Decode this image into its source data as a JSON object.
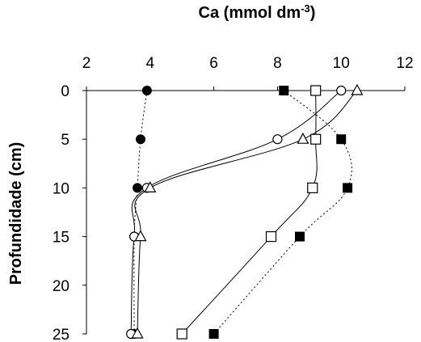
{
  "chart_data": {
    "type": "line",
    "title": "",
    "xlabel": "Ca (mmol dm",
    "xlabel_sup": "-3",
    "xlabel_suffix": ")",
    "ylabel": "Profundidade (cm)",
    "xlim": [
      2,
      12
    ],
    "ylim": [
      0,
      25
    ],
    "y_inverted": true,
    "x_axis_position": "top",
    "x_ticks": [
      2,
      4,
      6,
      8,
      10,
      12
    ],
    "y_ticks": [
      0,
      5,
      10,
      15,
      20,
      25
    ],
    "grid": false,
    "legend": "none",
    "series": [
      {
        "marker": "filled-circle",
        "line": "dotted",
        "color": "#000000",
        "points": [
          {
            "x": 3.9,
            "y": 0
          },
          {
            "x": 3.7,
            "y": 5
          },
          {
            "x": 3.6,
            "y": 10
          },
          {
            "x": 3.5,
            "y": 15
          },
          {
            "x": 3.5,
            "y": 25
          }
        ]
      },
      {
        "marker": "filled-square",
        "line": "dotted",
        "color": "#000000",
        "points": [
          {
            "x": 8.2,
            "y": 0
          },
          {
            "x": 10.0,
            "y": 5
          },
          {
            "x": 10.2,
            "y": 10
          },
          {
            "x": 8.7,
            "y": 15
          },
          {
            "x": 6.0,
            "y": 25
          }
        ]
      },
      {
        "marker": "open-square",
        "line": "solid",
        "color": "#000000",
        "points": [
          {
            "x": 9.2,
            "y": 0
          },
          {
            "x": 9.2,
            "y": 5
          },
          {
            "x": 9.1,
            "y": 10
          },
          {
            "x": 7.8,
            "y": 15
          },
          {
            "x": 5.0,
            "y": 25
          }
        ]
      },
      {
        "marker": "open-circle",
        "line": "solid",
        "color": "#000000",
        "points": [
          {
            "x": 10.0,
            "y": 0
          },
          {
            "x": 8.0,
            "y": 5
          },
          {
            "x": 3.9,
            "y": 10
          },
          {
            "x": 3.5,
            "y": 15
          },
          {
            "x": 3.4,
            "y": 25
          }
        ]
      },
      {
        "marker": "open-triangle",
        "line": "solid",
        "color": "#000000",
        "points": [
          {
            "x": 10.5,
            "y": 0
          },
          {
            "x": 8.8,
            "y": 5
          },
          {
            "x": 4.0,
            "y": 10
          },
          {
            "x": 3.7,
            "y": 15
          },
          {
            "x": 3.6,
            "y": 25
          }
        ]
      }
    ]
  }
}
